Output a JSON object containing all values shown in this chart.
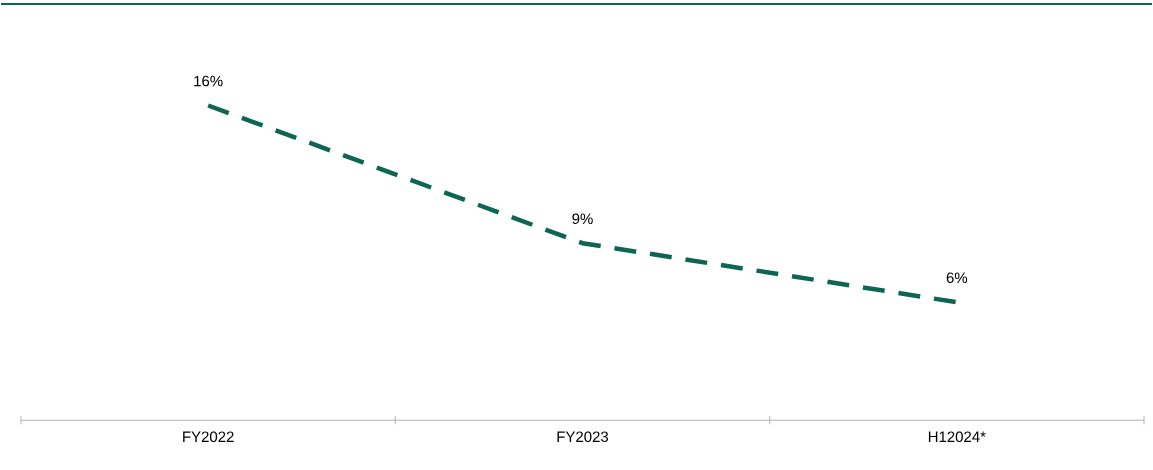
{
  "chart_data": {
    "type": "line",
    "categories": [
      "FY2022",
      "FY2023",
      "H12024*"
    ],
    "series": [
      {
        "color": "#0d6651",
        "values": [
          16,
          9,
          6
        ],
        "value_labels": [
          "16%",
          "9%",
          "6%"
        ]
      }
    ],
    "line_style": "dashed",
    "marker": "none"
  }
}
